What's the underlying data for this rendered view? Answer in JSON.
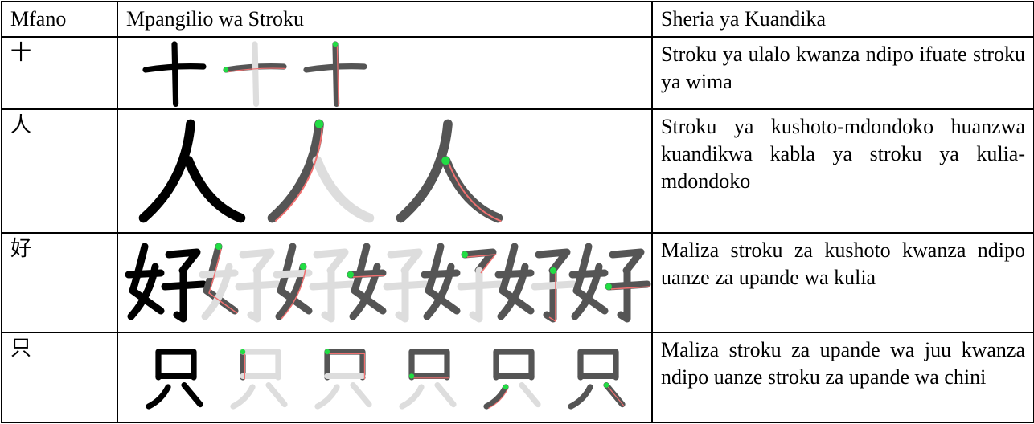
{
  "table": {
    "header": [
      "Mfano",
      "Mpangilio wa Stroku",
      "Sheria ya Kuandika"
    ],
    "rows": [
      {
        "example": "十",
        "rule": "Stroku ya ulalo kwanza ndipo ifuate stroku ya wima"
      },
      {
        "example": "人",
        "rule": "Stroku ya kushoto-mdondoko huanzwa kuandikwa kabla ya stroku ya kulia-mdondoko"
      },
      {
        "example": "好",
        "rule": "Maliza stroku za kushoto kwanza ndipo uanze za upande wa kulia"
      },
      {
        "example": "只",
        "rule": "Maliza stroku za upande wa juu kwanza ndipo uanze stroku za upande wa chini"
      }
    ]
  }
}
